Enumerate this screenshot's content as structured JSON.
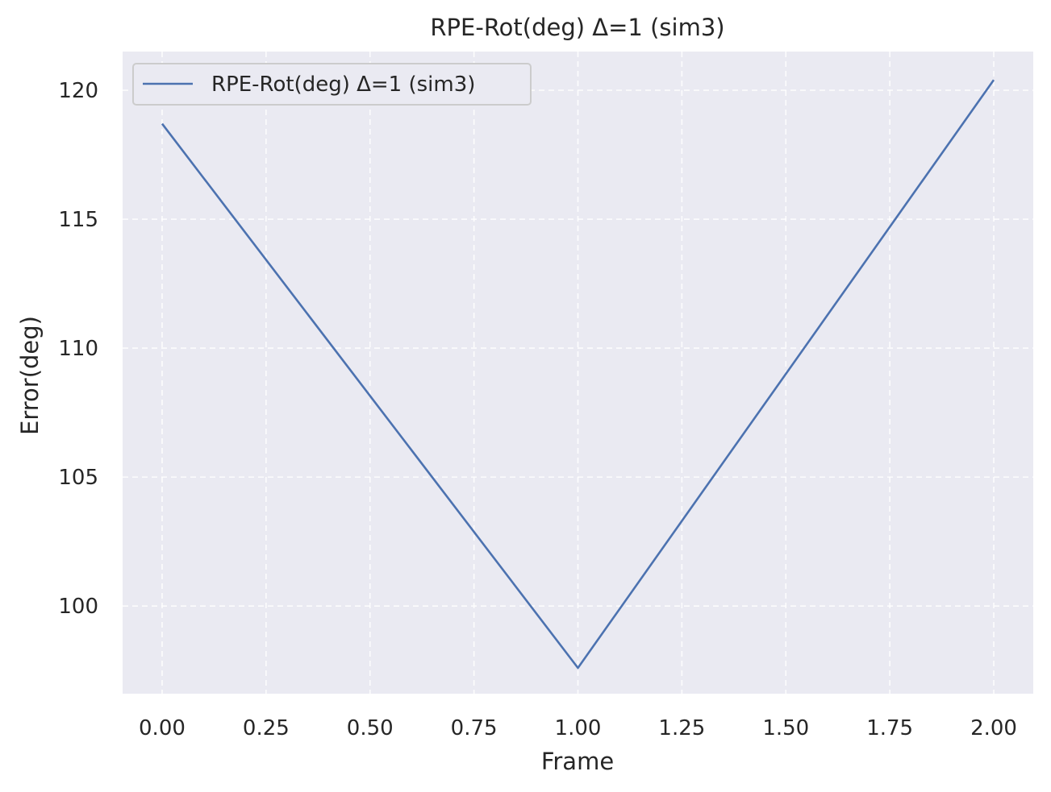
{
  "chart_data": {
    "type": "line",
    "title": "RPE-Rot(deg) Δ=1 (sim3)",
    "xlabel": "Frame",
    "ylabel": "Error(deg)",
    "xlim": [
      -0.095,
      2.095
    ],
    "ylim": [
      96.6,
      121.5
    ],
    "x_ticks": [
      0.0,
      0.25,
      0.5,
      0.75,
      1.0,
      1.25,
      1.5,
      1.75,
      2.0
    ],
    "x_tick_labels": [
      "0.00",
      "0.25",
      "0.50",
      "0.75",
      "1.00",
      "1.25",
      "1.50",
      "1.75",
      "2.00"
    ],
    "y_ticks": [
      100,
      105,
      110,
      115,
      120
    ],
    "y_tick_labels": [
      "100",
      "105",
      "110",
      "115",
      "120"
    ],
    "grid": true,
    "legend_position": "upper-left",
    "series": [
      {
        "name": "RPE-Rot(deg) Δ=1 (sim3)",
        "color": "#4c72b0",
        "x": [
          0,
          1,
          2
        ],
        "y": [
          118.7,
          97.6,
          120.4
        ]
      }
    ],
    "colors": {
      "plot_background": "#eaeaf2",
      "grid": "#ffffff",
      "text": "#262626"
    }
  }
}
